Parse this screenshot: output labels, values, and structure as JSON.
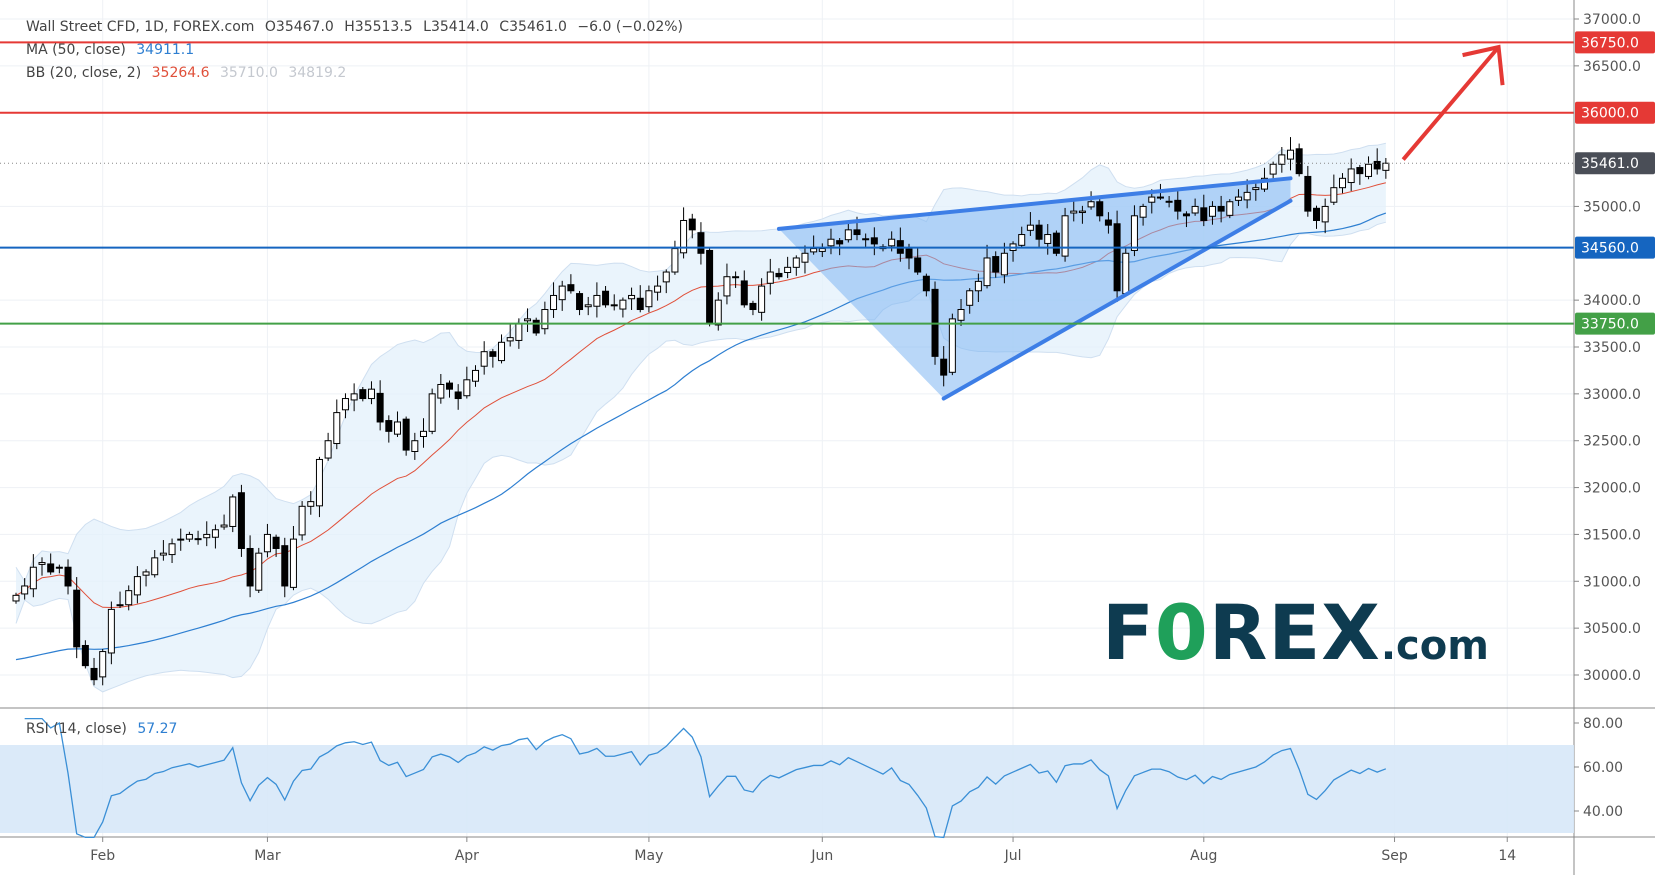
{
  "header": {
    "symbol": "Wall Street CFD, 1D, FOREX.com",
    "open": "O35467.0",
    "high": "H35513.5",
    "low": "L35414.0",
    "close": "C35461.0",
    "change": "−6.0 (−0.02%)"
  },
  "indicators": {
    "ma_label": "MA (50, close)",
    "ma_value": "34911.1",
    "bb_label": "BB (20, close, 2)",
    "bb_basis": "35264.6",
    "bb_upper": "35710.0",
    "bb_lower": "34819.2",
    "rsi_label": "RSI (14, close)",
    "rsi_value": "57.27"
  },
  "logo": {
    "part1": "F",
    "part2": "0",
    "part3": "REX",
    "part4": ".com"
  },
  "colors": {
    "up": "#ffffff",
    "down": "#000000",
    "ma": "#2e7fd1",
    "bb_basis": "#e0503a",
    "bb_fill": "#e3f0fb",
    "red_line": "#e53935",
    "blue_line": "#1565c0",
    "green_line": "#43a047",
    "last_price": "#4a4e57",
    "wedge": "#3d7ee6"
  },
  "chart_data": {
    "type": "candlestick",
    "title": "Wall Street CFD, 1D, FOREX.com",
    "price_ticks": [
      "37000.0",
      "36500.0",
      "35000.0",
      "34000.0",
      "33500.0",
      "33000.0",
      "32500.0",
      "32000.0",
      "31500.0",
      "31000.0",
      "30500.0",
      "30000.0"
    ],
    "price_tick_values": [
      37000,
      36500,
      35000,
      34000,
      33500,
      33000,
      32500,
      32000,
      31500,
      31000,
      30500,
      30000
    ],
    "ylim": [
      29700,
      37080
    ],
    "rsi_ticks": [
      "80.00",
      "60.00",
      "40.00"
    ],
    "rsi_tick_values": [
      80,
      60,
      40
    ],
    "rsi_band": [
      30,
      70
    ],
    "x_labels": [
      {
        "label": "Feb",
        "index": 10
      },
      {
        "label": "Mar",
        "index": 29
      },
      {
        "label": "Apr",
        "index": 52
      },
      {
        "label": "May",
        "index": 73
      },
      {
        "label": "Jun",
        "index": 93
      },
      {
        "label": "Jul",
        "index": 115
      },
      {
        "label": "Aug",
        "index": 137
      },
      {
        "label": "Sep",
        "index": 159
      },
      {
        "label": "14",
        "index": 172
      }
    ],
    "closes": [
      30850,
      30950,
      31150,
      31200,
      31100,
      31150,
      30950,
      30300,
      30100,
      29950,
      30250,
      30700,
      30750,
      30900,
      31050,
      31100,
      31250,
      31300,
      31400,
      31450,
      31500,
      31450,
      31500,
      31550,
      31600,
      31900,
      31350,
      30950,
      31300,
      31500,
      31350,
      30950,
      31450,
      31800,
      31850,
      32300,
      32500,
      32800,
      32950,
      33000,
      32950,
      33050,
      32700,
      32600,
      32700,
      32400,
      32500,
      32600,
      33000,
      33100,
      33050,
      32950,
      33150,
      33250,
      33450,
      33400,
      33550,
      33600,
      33750,
      33800,
      33650,
      33900,
      34050,
      34150,
      34100,
      33900,
      33950,
      34050,
      33950,
      33950,
      34000,
      34050,
      33900,
      34100,
      34150,
      34300,
      34550,
      34850,
      34750,
      34500,
      33750,
      34000,
      34250,
      34250,
      33950,
      33900,
      34150,
      34300,
      34250,
      34350,
      34450,
      34500,
      34550,
      34550,
      34650,
      34600,
      34750,
      34700,
      34650,
      34600,
      34550,
      34650,
      34500,
      34450,
      34300,
      34100,
      33400,
      33200,
      33800,
      33900,
      34100,
      34200,
      34450,
      34300,
      34500,
      34600,
      34700,
      34800,
      34650,
      34700,
      34500,
      34900,
      34950,
      34950,
      35050,
      34900,
      34800,
      34100,
      34500,
      34900,
      35000,
      35100,
      35100,
      35050,
      34950,
      34900,
      35000,
      34850,
      35000,
      34950,
      35050,
      35100,
      35150,
      35200,
      35300,
      35450,
      35550,
      35600,
      35350,
      34950,
      34850,
      35000,
      35200,
      35300,
      35400,
      35350,
      35450,
      35400,
      35461
    ],
    "horizontal_levels": [
      {
        "value": 36750,
        "label": "36750.0",
        "color": "#e53935"
      },
      {
        "value": 36000,
        "label": "36000.0",
        "color": "#e53935"
      },
      {
        "value": 34560,
        "label": "34560.0",
        "color": "#1565c0"
      },
      {
        "value": 33750,
        "label": "33750.0",
        "color": "#43a047"
      }
    ],
    "last_price": {
      "value": 35461,
      "label": "35461.0"
    },
    "rising_wedge": {
      "upper": [
        {
          "index": 88,
          "price": 34760
        },
        {
          "index": 147,
          "price": 35300
        }
      ],
      "lower": [
        {
          "index": 107,
          "price": 32950
        },
        {
          "index": 147,
          "price": 35060
        }
      ]
    },
    "target_arrow": {
      "from": {
        "index": 160,
        "price": 35500
      },
      "to": {
        "index": 171,
        "price": 36700
      }
    }
  }
}
